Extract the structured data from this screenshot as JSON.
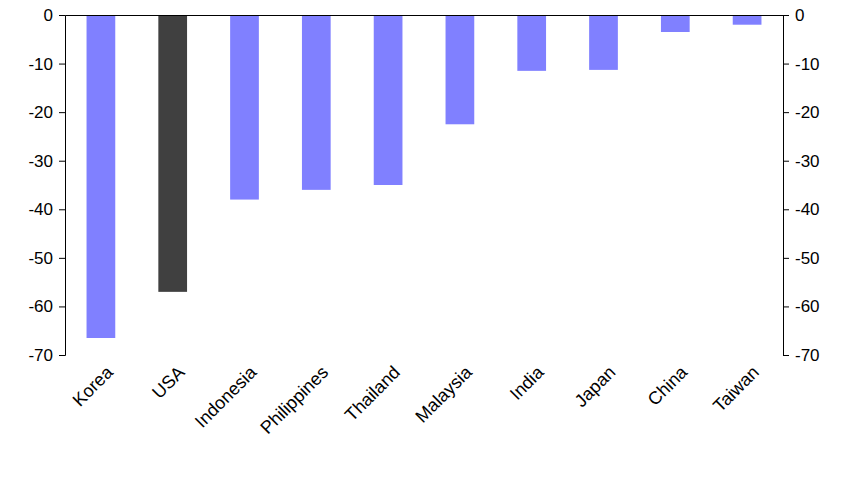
{
  "chart_data": {
    "type": "bar",
    "categories": [
      "Korea",
      "USA",
      "Indonesia",
      "Philippines",
      "Thailand",
      "Malaysia",
      "India",
      "Japan",
      "China",
      "Taiwan"
    ],
    "values": [
      -66.5,
      -57,
      -38,
      -36,
      -35,
      -22.5,
      -11.5,
      -11.3,
      -3.5,
      -2
    ],
    "colors": [
      "#8080ff",
      "#404040",
      "#8080ff",
      "#8080ff",
      "#8080ff",
      "#8080ff",
      "#8080ff",
      "#8080ff",
      "#8080ff",
      "#8080ff"
    ],
    "ylim": [
      -70,
      0
    ],
    "yticks": [
      -70,
      -60,
      -50,
      -40,
      -30,
      -20,
      -10,
      0
    ],
    "grid": false
  }
}
